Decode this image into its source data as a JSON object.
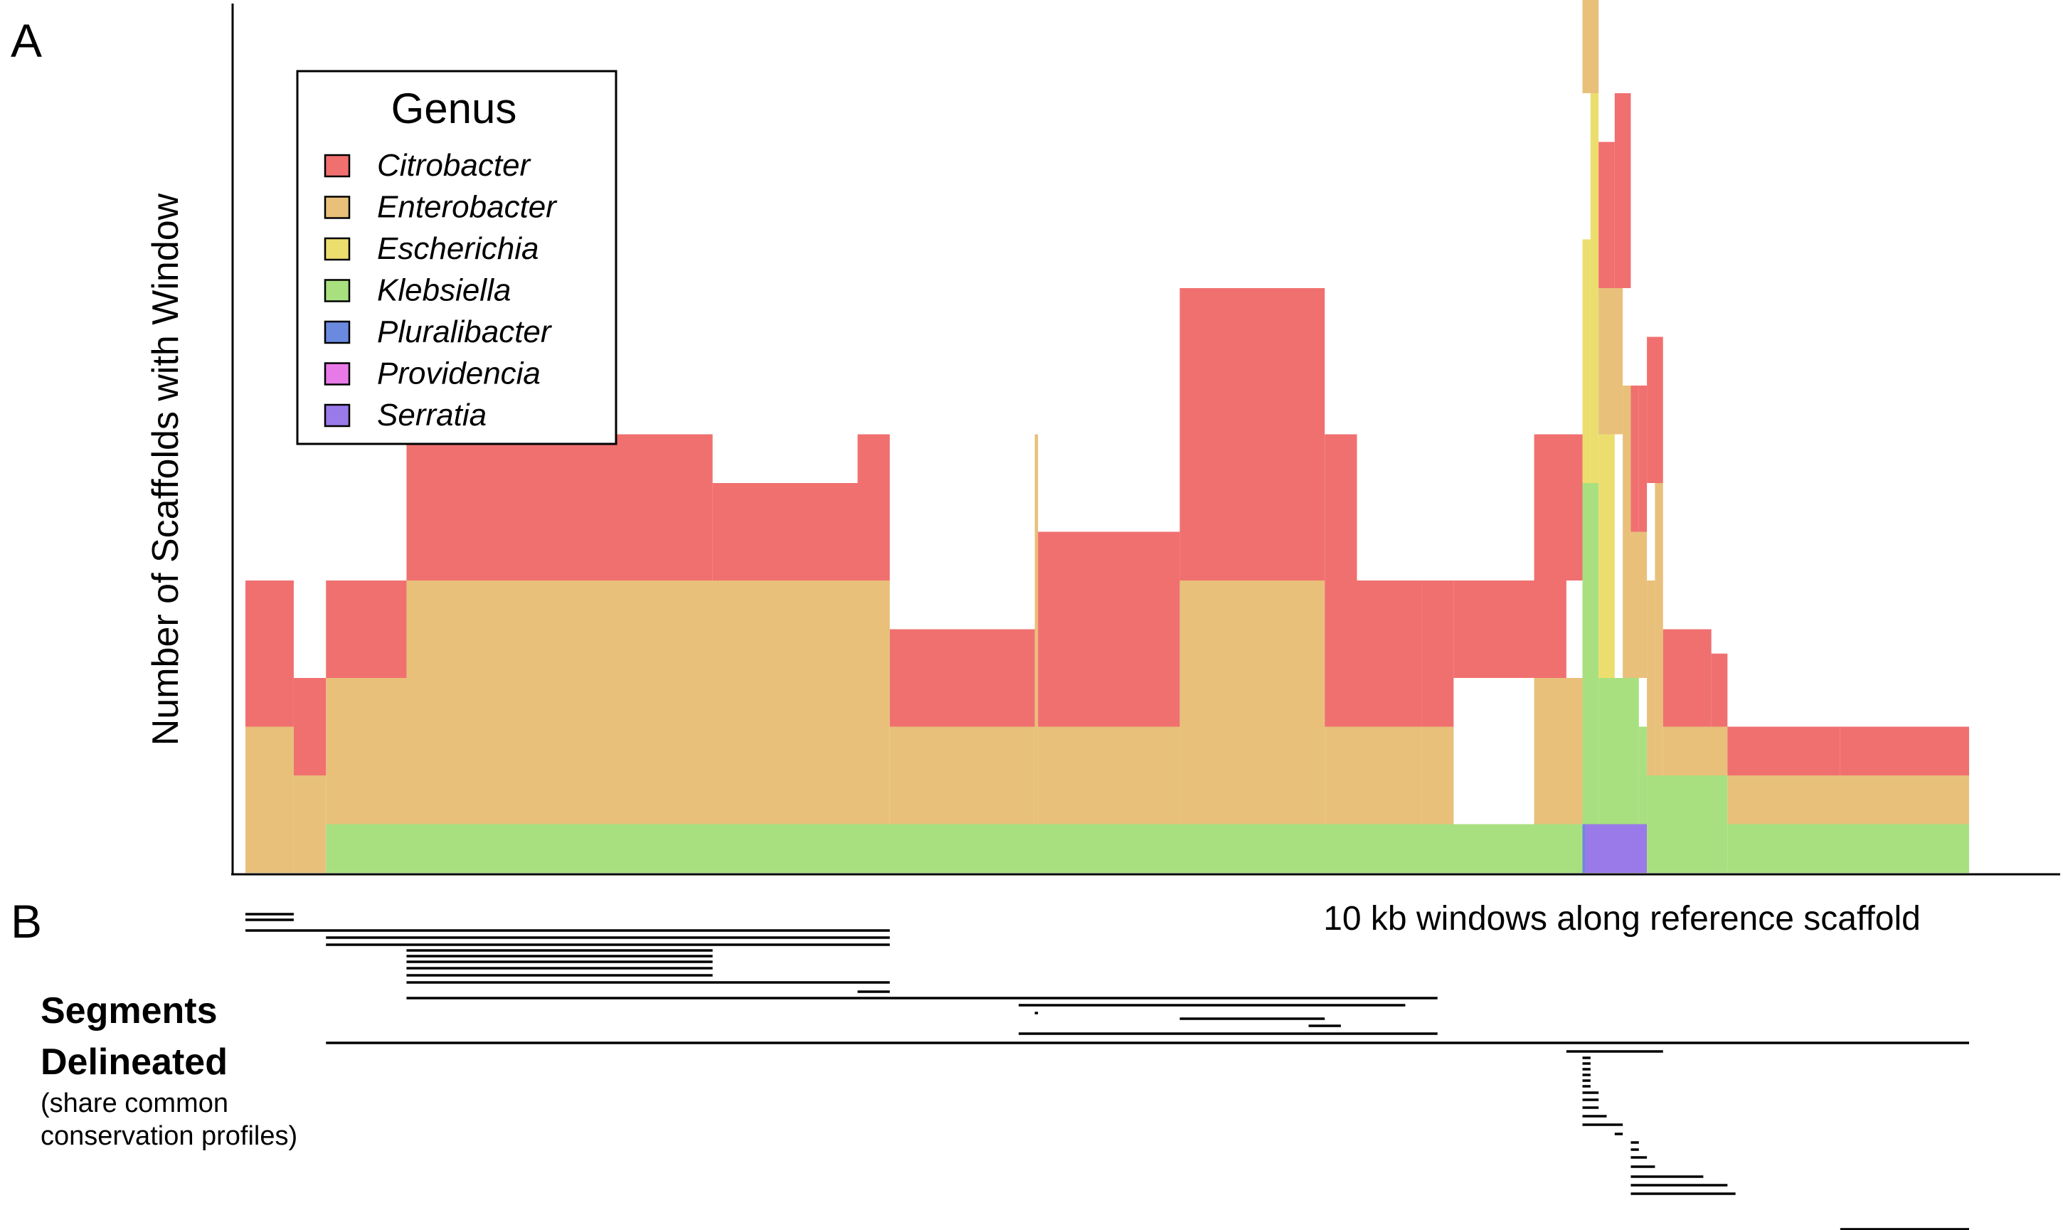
{
  "panels": {
    "a_label": "A",
    "b_label": "B"
  },
  "colors": {
    "Citrobacter": "#f07070",
    "Enterobacter": "#e8c07a",
    "Escherichia": "#ecde6e",
    "Klebsiella": "#a8e080",
    "Pluralibacter": "#6a8ae0",
    "Providencia": "#e87ae8",
    "Serratia": "#9a7ae8"
  },
  "legend": {
    "title": "Genus",
    "items": [
      "Citrobacter",
      "Enterobacter",
      "Escherichia",
      "Klebsiella",
      "Pluralibacter",
      "Providencia",
      "Serratia"
    ],
    "placement": "top-left"
  },
  "segments": {
    "title_line1": "Segments",
    "title_line2": "Delineated",
    "subtitle_line1": "(share common",
    "subtitle_line2": "conservation profiles)",
    "intervals": [
      [
        0,
        3
      ],
      [
        0,
        3
      ],
      [
        0,
        40
      ],
      [
        5,
        40
      ],
      [
        5,
        40
      ],
      [
        10,
        29
      ],
      [
        10,
        29
      ],
      [
        10,
        29
      ],
      [
        10,
        29
      ],
      [
        10,
        29
      ],
      [
        10,
        40
      ],
      [
        38,
        40
      ],
      [
        10,
        74
      ],
      [
        48,
        72
      ],
      [
        49,
        49.2
      ],
      [
        58,
        67
      ],
      [
        66,
        68
      ],
      [
        48,
        74
      ],
      [
        5,
        107
      ],
      [
        82,
        88
      ],
      [
        83,
        83.5
      ],
      [
        83,
        83.5
      ],
      [
        83,
        83.5
      ],
      [
        83,
        83.5
      ],
      [
        83,
        83.5
      ],
      [
        83,
        83.5
      ],
      [
        83,
        84
      ],
      [
        83,
        84
      ],
      [
        83,
        84
      ],
      [
        83,
        84.5
      ],
      [
        83,
        85.5
      ],
      [
        85,
        85.5
      ],
      [
        86,
        86.5
      ],
      [
        86,
        86.5
      ],
      [
        86,
        87
      ],
      [
        86,
        87.5
      ],
      [
        86,
        90.5
      ],
      [
        86,
        92
      ],
      [
        86,
        92.5
      ],
      [
        99,
        107
      ]
    ]
  },
  "chart_data": {
    "type": "bar",
    "stacked": true,
    "xlabel": "10 kb windows along reference scaffold",
    "ylabel": "Number of Scaffolds with Window",
    "ylim": [
      0,
      17.5
    ],
    "y_ticks_shown": false,
    "grid": false,
    "x": {
      "windows": 107,
      "start": 0,
      "end": 107
    },
    "series": [
      {
        "name": "Serratia",
        "segments": [
          [
            83,
            87,
            1
          ]
        ]
      },
      {
        "name": "Pluralibacter",
        "segments": [
          [
            83,
            83.15,
            1
          ]
        ]
      },
      {
        "name": "Klebsiella",
        "segments": [
          [
            5,
            83,
            1
          ],
          [
            83,
            84,
            7
          ],
          [
            84,
            86.5,
            3
          ],
          [
            86.5,
            87,
            2
          ],
          [
            87,
            92,
            2
          ],
          [
            92,
            107,
            1
          ]
        ]
      },
      {
        "name": "Escherichia",
        "segments": [
          [
            83,
            83.5,
            5
          ],
          [
            83.5,
            84,
            8
          ],
          [
            84,
            85,
            5
          ]
        ]
      },
      {
        "name": "Enterobacter",
        "segments": [
          [
            0,
            3,
            3
          ],
          [
            3,
            5,
            2
          ],
          [
            5,
            10,
            3
          ],
          [
            10,
            40,
            5
          ],
          [
            40,
            45,
            2
          ],
          [
            45,
            49,
            2
          ],
          [
            49,
            49.2,
            8
          ],
          [
            49.2,
            58,
            2
          ],
          [
            58,
            67,
            5
          ],
          [
            67,
            73,
            2
          ],
          [
            73,
            75,
            2
          ],
          [
            80,
            83,
            3
          ],
          [
            83,
            84,
            3
          ],
          [
            84,
            85.5,
            3
          ],
          [
            85.5,
            86,
            6
          ],
          [
            86,
            87,
            3
          ],
          [
            87,
            87.5,
            4
          ],
          [
            87.5,
            88,
            6
          ],
          [
            88,
            92,
            1
          ],
          [
            92,
            107,
            1
          ]
        ]
      },
      {
        "name": "Citrobacter",
        "segments": [
          [
            0,
            3,
            3
          ],
          [
            3,
            5,
            2
          ],
          [
            5,
            10,
            2
          ],
          [
            10,
            29,
            3
          ],
          [
            29,
            38,
            2
          ],
          [
            38,
            40,
            3
          ],
          [
            40,
            49,
            2
          ],
          [
            49,
            49.2,
            0
          ],
          [
            49.2,
            58,
            4
          ],
          [
            58,
            67,
            6
          ],
          [
            67,
            69,
            6
          ],
          [
            69,
            73,
            3
          ],
          [
            73,
            75,
            3
          ],
          [
            75,
            82,
            2
          ],
          [
            80,
            83,
            3
          ],
          [
            83,
            83.5,
            0.5
          ],
          [
            83.5,
            84,
            4
          ],
          [
            84,
            85,
            3
          ],
          [
            85,
            86,
            4
          ],
          [
            86,
            86.5,
            3
          ],
          [
            86.5,
            87,
            3
          ],
          [
            87,
            88,
            3
          ],
          [
            88,
            91,
            2
          ],
          [
            91,
            92,
            1.5
          ],
          [
            92,
            99,
            1
          ],
          [
            99,
            107,
            1
          ]
        ]
      }
    ]
  }
}
